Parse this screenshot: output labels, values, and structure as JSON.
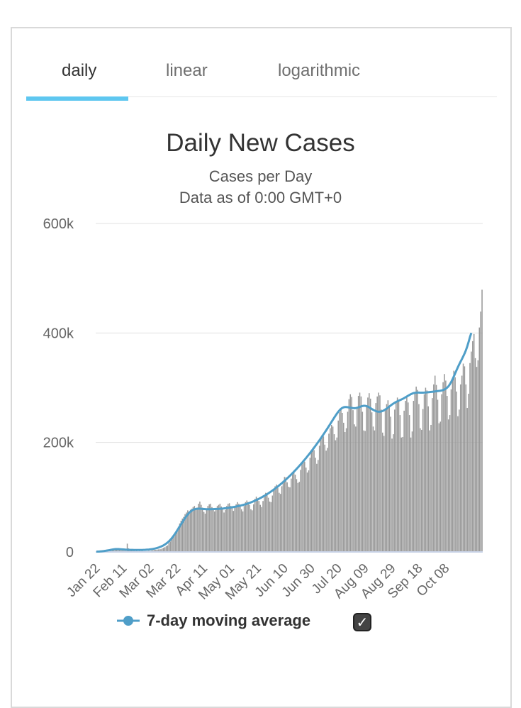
{
  "tabs": [
    {
      "label": "daily",
      "active": true
    },
    {
      "label": "linear",
      "active": false
    },
    {
      "label": "logarithmic",
      "active": false
    }
  ],
  "colors": {
    "tab_accent": "#5ec7f0",
    "bars": "#999999",
    "moving_average": "#4f9ec8",
    "gridline": "#e0e0e0"
  },
  "legend": {
    "label": "7-day moving average",
    "checkbox_icon": "check-icon",
    "checked": true
  },
  "chart_data": {
    "type": "bar",
    "title": "Daily New Cases",
    "subtitle": [
      "Cases per Day",
      "Data as of 0:00 GMT+0"
    ],
    "xlabel": "",
    "ylabel": "",
    "ylim": [
      0,
      600000
    ],
    "y_ticks": [
      {
        "value": 0,
        "label": "0"
      },
      {
        "value": 200000,
        "label": "200k"
      },
      {
        "value": 400000,
        "label": "400k"
      },
      {
        "value": 600000,
        "label": "600k"
      }
    ],
    "x_ticks": [
      "Jan 22",
      "Feb 11",
      "Mar 02",
      "Mar 22",
      "Apr 11",
      "May 01",
      "May 21",
      "Jun 10",
      "Jun 30",
      "Jul 20",
      "Aug 09",
      "Aug 29",
      "Sep 18",
      "Oct 08"
    ],
    "x_tick_spacing_days": 20,
    "start_date": "Jan 22",
    "grid": true,
    "series": [
      {
        "kind": "bar",
        "values": [
          550,
          660,
          950,
          2100,
          1400,
          2100,
          2600,
          2100,
          2100,
          2600,
          3800,
          3800,
          3100,
          4100,
          4000,
          3900,
          3800,
          3600,
          3000,
          2600,
          2700,
          2100,
          2000,
          15100,
          6500,
          4200,
          3400,
          2100,
          2600,
          1500,
          2600,
          1200,
          1800,
          1300,
          1900,
          1300,
          1200,
          1500,
          1600,
          2000,
          1900,
          2400,
          3000,
          3800,
          3600,
          4000,
          4700,
          4800,
          5000,
          6600,
          7500,
          8800,
          10500,
          12000,
          16000,
          19000,
          24000,
          28000,
          32000,
          37000,
          41000,
          46000,
          52000,
          57000,
          61000,
          64000,
          69000,
          72000,
          76000,
          74000,
          77000,
          79000,
          82000,
          84000,
          79000,
          81000,
          88000,
          92000,
          86000,
          81000,
          73000,
          70000,
          77000,
          84000,
          87000,
          88000,
          82000,
          77000,
          74000,
          80000,
          84000,
          86000,
          88000,
          83000,
          80000,
          72000,
          77000,
          84000,
          88000,
          89000,
          84000,
          80000,
          75000,
          83000,
          87000,
          91000,
          88000,
          84000,
          78000,
          74000,
          84000,
          91000,
          94000,
          91000,
          86000,
          78000,
          76000,
          87000,
          97000,
          101000,
          98000,
          93000,
          86000,
          82000,
          93000,
          102000,
          108000,
          104000,
          99000,
          92000,
          91000,
          103000,
          112000,
          120000,
          123000,
          117000,
          108000,
          106000,
          120000,
          130000,
          137000,
          136000,
          127000,
          119000,
          118000,
          134000,
          143000,
          146000,
          141000,
          133000,
          126000,
          128000,
          150000,
          162000,
          168000,
          165000,
          154000,
          145000,
          149000,
          172000,
          182000,
          190000,
          186000,
          172000,
          161000,
          168000,
          194000,
          207000,
          214000,
          211000,
          196000,
          185000,
          190000,
          216000,
          226000,
          232000,
          229000,
          215000,
          204000,
          209000,
          240000,
          255000,
          261000,
          254000,
          236000,
          219000,
          226000,
          256000,
          279000,
          288000,
          283000,
          259000,
          233000,
          229000,
          265000,
          285000,
          291000,
          284000,
          256000,
          222000,
          221000,
          268000,
          282000,
          290000,
          280000,
          255000,
          229000,
          222000,
          272000,
          284000,
          291000,
          286000,
          260000,
          218000,
          212000,
          260000,
          270000,
          277000,
          265000,
          247000,
          207000,
          215000,
          260000,
          273000,
          282000,
          275000,
          250000,
          209000,
          210000,
          258000,
          276000,
          285000,
          273000,
          250000,
          209000,
          220000,
          276000,
          291000,
          302000,
          296000,
          270000,
          226000,
          223000,
          261000,
          288000,
          300000,
          295000,
          266000,
          222000,
          232000,
          281000,
          306000,
          322000,
          305000,
          278000,
          235000,
          238000,
          288000,
          310000,
          325000,
          313000,
          285000,
          242000,
          250000,
          297000,
          316000,
          331000,
          319000,
          293000,
          248000,
          260000,
          306000,
          322000,
          344000,
          339000,
          306000,
          263000,
          289000,
          345000,
          366000,
          385000,
          398000,
          354000,
          338000,
          350000,
          410000,
          439000,
          479000
        ],
        "color": "#999999"
      },
      {
        "kind": "line",
        "name": "7-day moving average",
        "values": [
          550,
          600,
          700,
          1000,
          1200,
          1400,
          1800,
          2200,
          2600,
          3000,
          3400,
          3900,
          4400,
          4800,
          5100,
          5200,
          5200,
          5100,
          4900,
          4700,
          4500,
          4300,
          4100,
          4000,
          3900,
          3800,
          3700,
          3700,
          3600,
          3500,
          3500,
          3500,
          3500,
          3500,
          3600,
          3700,
          3800,
          4000,
          4200,
          4400,
          4700,
          5000,
          5400,
          5900,
          6400,
          7100,
          7800,
          8700,
          9700,
          10800,
          12100,
          13600,
          15300,
          17200,
          19400,
          21900,
          24700,
          27800,
          31200,
          34800,
          38600,
          42500,
          46500,
          50500,
          54400,
          58200,
          61800,
          65200,
          68400,
          71200,
          73500,
          75500,
          77000,
          78000,
          78500,
          78800,
          79000,
          79000,
          78800,
          78600,
          78400,
          78200,
          78000,
          78000,
          78000,
          78100,
          78200,
          78300,
          78400,
          78500,
          78600,
          78700,
          78900,
          79100,
          79300,
          79500,
          79800,
          80100,
          80400,
          80800,
          81200,
          81600,
          82000,
          82400,
          82900,
          83400,
          83900,
          84500,
          85100,
          85700,
          86400,
          87100,
          87900,
          88700,
          89600,
          90500,
          91500,
          92500,
          93600,
          94700,
          95900,
          97100,
          98400,
          99700,
          101100,
          102500,
          104000,
          105500,
          107100,
          108700,
          110400,
          112100,
          113900,
          115700,
          117600,
          119500,
          121500,
          123500,
          125600,
          127700,
          129900,
          132100,
          134400,
          136700,
          139100,
          141500,
          144000,
          146500,
          149100,
          151700,
          154400,
          157100,
          159900,
          162700,
          165600,
          168500,
          171500,
          174500,
          177600,
          180700,
          183900,
          187100,
          190400,
          193700,
          197100,
          200500,
          204000,
          207500,
          211100,
          214700,
          218400,
          222100,
          225900,
          229700,
          233600,
          237500,
          241400,
          245300,
          249100,
          252700,
          256000,
          258900,
          261300,
          263100,
          264200,
          264700,
          264700,
          264400,
          263900,
          263400,
          263000,
          262700,
          262600,
          262800,
          263300,
          264000,
          264900,
          265800,
          266500,
          266900,
          266900,
          266400,
          265500,
          264200,
          262700,
          261100,
          259600,
          258300,
          257200,
          256500,
          256100,
          256200,
          256600,
          257400,
          258600,
          260100,
          261800,
          263700,
          265600,
          267500,
          269300,
          271000,
          272500,
          273900,
          275100,
          276300,
          277400,
          278500,
          279700,
          281000,
          282400,
          283900,
          285400,
          286800,
          288100,
          289200,
          290100,
          290700,
          291000,
          291100,
          291100,
          291000,
          291000,
          291000,
          291100,
          291300,
          291500,
          291800,
          292000,
          292300,
          292600,
          292900,
          293200,
          293500,
          293800,
          294100,
          294500,
          295000,
          295700,
          296700,
          298100,
          300000,
          302600,
          306000,
          310200,
          315100,
          320500,
          326200,
          331900,
          337400,
          342600,
          347500,
          352300,
          357200,
          362500,
          368500,
          375500,
          383700,
          392500,
          400000
        ],
        "color": "#4f9ec8"
      }
    ]
  }
}
